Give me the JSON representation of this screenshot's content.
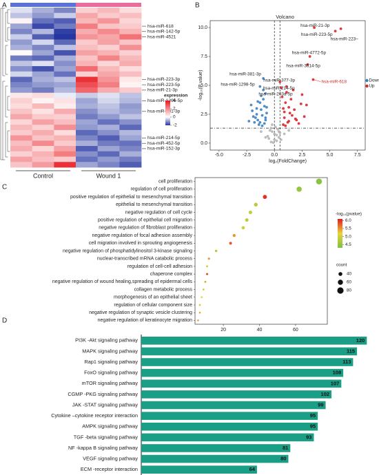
{
  "chart_data": [
    {
      "type": "heatmap",
      "panel": "A",
      "rows": [
        null,
        null,
        null,
        "hsa-miR-618",
        "hsa-miR-142-5p",
        "hsa-miR-4521",
        null,
        null,
        null,
        null,
        null,
        null,
        null,
        "hsa-miR-223-3p",
        "hsa-miR-223-5p",
        "hsa-miR-21-3p",
        null,
        "hsa-miR-1296-5p",
        null,
        "hsa-miR-381-3p",
        null,
        null,
        null,
        null,
        "hsa-miR-214-5p",
        "hsa-miR-452-5p",
        "hsa-miR-152-3p",
        null,
        null,
        null
      ],
      "groups": [
        {
          "name": "Control",
          "color": "#5b73d6"
        },
        {
          "name": "Wound 1",
          "color": "#e86d9d"
        }
      ],
      "values": [
        [
          -0.3,
          -0.8,
          -1.2,
          0.8,
          1.2,
          0.6
        ],
        [
          -0.6,
          -1.0,
          -0.5,
          1.5,
          0.9,
          1.1
        ],
        [
          0.2,
          -1.4,
          -1.6,
          1.2,
          1.8,
          0.7
        ],
        [
          -0.9,
          -1.8,
          -1.3,
          2.2,
          1.0,
          0.9
        ],
        [
          -1.2,
          -0.7,
          -1.9,
          1.4,
          2.0,
          1.3
        ],
        [
          -0.5,
          -1.6,
          -2.0,
          1.8,
          1.5,
          2.4
        ],
        [
          -1.0,
          -0.4,
          -1.5,
          0.9,
          1.6,
          1.0
        ],
        [
          -0.8,
          -1.2,
          -0.6,
          1.1,
          0.8,
          1.9
        ],
        [
          0.1,
          -0.9,
          -1.7,
          1.6,
          1.3,
          0.8
        ],
        [
          -1.3,
          -1.5,
          -0.8,
          1.0,
          2.1,
          1.2
        ],
        [
          -0.6,
          -0.3,
          -1.1,
          1.3,
          0.7,
          1.4
        ],
        [
          -1.1,
          -1.7,
          -0.9,
          2.5,
          1.2,
          0.6
        ],
        [
          -0.4,
          -0.9,
          -1.4,
          0.8,
          1.5,
          1.1
        ],
        [
          -1.5,
          -0.8,
          -0.6,
          3.5,
          1.8,
          0.4
        ],
        [
          -1.2,
          -1.0,
          -0.9,
          3.0,
          2.2,
          0.2
        ],
        [
          -1.0,
          -1.3,
          -0.7,
          2.6,
          1.4,
          0.9
        ],
        [
          0.4,
          0.6,
          -0.2,
          -0.5,
          -0.3,
          -0.6
        ],
        [
          0.8,
          0.2,
          0.5,
          -0.9,
          -0.4,
          -0.7
        ],
        [
          0.6,
          1.2,
          0.3,
          -0.8,
          -0.6,
          -1.0
        ],
        [
          1.0,
          0.5,
          1.4,
          -1.1,
          -0.7,
          -0.9
        ],
        [
          1.5,
          0.9,
          0.8,
          -1.3,
          -1.0,
          -0.6
        ],
        [
          0.7,
          1.6,
          1.1,
          -0.9,
          -1.4,
          -1.1
        ],
        [
          1.2,
          0.8,
          1.9,
          -1.0,
          -0.8,
          -1.5
        ],
        [
          0.9,
          1.4,
          0.6,
          -1.5,
          -1.1,
          -0.7
        ],
        [
          1.8,
          1.0,
          1.3,
          -1.2,
          -1.6,
          -0.9
        ],
        [
          1.1,
          2.0,
          0.9,
          -0.8,
          -1.3,
          -1.4
        ],
        [
          1.4,
          0.7,
          1.6,
          -1.6,
          -0.9,
          -1.2
        ],
        [
          0.8,
          1.3,
          2.2,
          -1.1,
          -1.5,
          -0.8
        ],
        [
          1.6,
          1.1,
          0.9,
          -1.4,
          -1.0,
          -1.3
        ],
        [
          1.0,
          1.7,
          3.5,
          -0.9,
          -1.2,
          -1.6
        ]
      ],
      "clim": [
        -2,
        4
      ],
      "colors": [
        "#2536a0",
        "#ffffff",
        "#e8141c"
      ],
      "legend_title": "expression",
      "legend_ticks": [
        4,
        2,
        0,
        -2
      ]
    },
    {
      "type": "scatter",
      "panel": "B",
      "title": "Volcano",
      "x_label": "log₂(FoldChange)",
      "y_label": "-log₁₀(P value)",
      "xlim": [
        -5.8,
        8.2
      ],
      "ylim": [
        -0.6,
        10.6
      ],
      "xticks": [
        {
          "value": -5,
          "label": "-5.0"
        },
        {
          "value": -2.5,
          "label": "-2.5"
        },
        {
          "value": 0,
          "label": "0.0"
        },
        {
          "value": 2.5,
          "label": "2.5"
        },
        {
          "value": 5,
          "label": "5.0"
        },
        {
          "value": 7.5,
          "label": "7.5"
        }
      ],
      "yticks": [
        {
          "value": 0,
          "label": "0.0"
        },
        {
          "value": 2.5,
          "label": "2.5"
        },
        {
          "value": 5,
          "label": "5.0"
        },
        {
          "value": 7.5,
          "label": "7.5"
        },
        {
          "value": 10,
          "label": "10.0"
        }
      ],
      "vlines": [
        0,
        0.5
      ],
      "hline": 1.3,
      "legend": "right",
      "series": [
        {
          "name": "Down",
          "color": "#3d7fc0",
          "x": [
            -1.2,
            -1.5,
            -0.9,
            -2.0,
            -1.1,
            -1.7,
            -0.8,
            -1.3,
            -2.3,
            -1.0,
            -1.6,
            -0.7,
            -1.4,
            -1.9,
            -1.2,
            -0.9,
            -1.5,
            -2.1,
            -1.1,
            -0.8,
            -1.3,
            -1.8,
            -1.0,
            -0.7,
            -1.6,
            -1.0,
            -1.3,
            -0.8
          ],
          "values": [
            4.1,
            3.6,
            3.2,
            2.8,
            2.4,
            2.2,
            2.0,
            1.8,
            1.9,
            3.8,
            3.0,
            2.6,
            1.6,
            2.3,
            2.9,
            1.7,
            2.0,
            3.3,
            1.5,
            2.2,
            3.5,
            1.8,
            4.6,
            3.1,
            2.5,
            5.6,
            4.9,
            4.3
          ],
          "labels": [
            null,
            null,
            null,
            null,
            null,
            null,
            null,
            null,
            null,
            null,
            null,
            null,
            null,
            null,
            null,
            null,
            null,
            null,
            null,
            null,
            null,
            null,
            null,
            null,
            null,
            "hsa-miR-381-3p",
            "hsa-miR-1298-5p",
            "hsa-miR-203a-5p"
          ]
        },
        {
          "name": "Up",
          "color": "#d9262b",
          "x": [
            0.7,
            1.0,
            1.3,
            0.9,
            1.6,
            2.0,
            1.2,
            0.8,
            1.8,
            2.4,
            1.1,
            1.5,
            0.9,
            2.2,
            1.4,
            1.0,
            2.7,
            1.7,
            0.8,
            1.3,
            2.9,
            1.9,
            1.1,
            3.6,
            3.2,
            3.0,
            5.5,
            6.0,
            3.5,
            2.5,
            0.5,
            0.6
          ],
          "values": [
            4.0,
            3.5,
            3.1,
            2.7,
            2.4,
            2.0,
            1.8,
            1.6,
            2.9,
            3.4,
            4.4,
            3.8,
            2.2,
            1.7,
            2.6,
            1.5,
            2.3,
            4.6,
            3.0,
            1.9,
            3.3,
            2.1,
            4.9,
            10.0,
            7.5,
            6.8,
            9.7,
            9.9,
            5.5,
            4.2,
            5.3,
            4.8
          ],
          "labels": [
            null,
            null,
            null,
            null,
            null,
            null,
            null,
            null,
            null,
            null,
            null,
            null,
            null,
            null,
            null,
            null,
            null,
            null,
            null,
            null,
            null,
            null,
            null,
            "hsa-miR-21-3p",
            "hsa-miR-4772-5p",
            "hsa-miR-3614-5p",
            "hsa-miR-223-5p",
            "hsa-miR-223–",
            "hsa-miR-618",
            null,
            "hsa-miR-377-3p",
            "hsa-miR-214-5p"
          ]
        },
        {
          "color": "#b5b5b5",
          "x": [
            -0.3,
            0.2,
            -0.5,
            0.4,
            0.0,
            -0.2,
            0.3,
            -0.6,
            0.5,
            0.1,
            -0.4,
            0.6,
            -0.1,
            0.2,
            -0.3,
            0.4,
            -0.8,
            0.9,
            -1.2,
            1.3,
            0.0,
            -0.2
          ],
          "values": [
            0.1,
            0.2,
            0.4,
            0.5,
            0.8,
            1.0,
            1.2,
            0.6,
            0.9,
            1.4,
            1.1,
            0.3,
            0.05,
            0.7,
            1.3,
            1.0,
            0.5,
            0.8,
            1.0,
            1.1,
            0.3,
            1.6
          ]
        }
      ]
    },
    {
      "type": "bubble",
      "panel": "C",
      "categories": [
        "cell proliferation",
        "regulation of cell proliferation",
        "positive regulation of epithelial to mesenchymal transition",
        "epithelial to mesenchymal transition",
        "negative regulation of cell cycle",
        "positive regulation of epithelial cell migration",
        "negative regulation of fibroblast proliferation",
        "negative regulation of focal adhesion assembly",
        "cell migration involved in sprouting angiogenesis",
        "negative regulation of phosphatidylinositol 3-kinase signaling",
        "nuclear-transcribed mRNA catabolic process",
        "regulation of cell-cell adhesion",
        "chaperone complex",
        "negative regulation of wound healing,spreading of epidermal cells",
        "collagen metabolic process",
        "morphogenesis of an epithelial sheet",
        "regulation of cellular component size",
        "negative regulation of synaptic vesicle clustering",
        "negative regulation of keratinocyte migration"
      ],
      "values": [
        73,
        62,
        43,
        38,
        35,
        33,
        31,
        26,
        24,
        16,
        12,
        11,
        11,
        10,
        9,
        8,
        7,
        7,
        6
      ],
      "color_values": [
        4.4,
        4.5,
        6.0,
        4.8,
        4.9,
        4.8,
        5.0,
        5.5,
        5.8,
        4.8,
        5.5,
        5.0,
        5.9,
        5.4,
        5.0,
        5.2,
        5.3,
        5.4,
        5.5
      ],
      "xlim": [
        4.3,
        77.6
      ],
      "xticks": [
        20,
        40,
        60
      ],
      "color_lim": [
        4.3,
        6.1
      ],
      "colors": [
        "#7cc242",
        "#e9d23a",
        "#e41a1c"
      ],
      "color_title": "-log₁₀(pvalue)",
      "color_ticks": [
        {
          "value": 6,
          "label": "6.0"
        },
        {
          "value": 5.5,
          "label": "5.5"
        },
        {
          "value": 5,
          "label": "5.0"
        },
        {
          "value": 4.5,
          "label": "4.5"
        }
      ],
      "size_title": "count",
      "size_legend": [
        40,
        60,
        80
      ]
    },
    {
      "type": "barh",
      "panel": "D",
      "categories": [
        "PI3K -Akt signaling pathway",
        "MAPK signaling pathway",
        "Rap1 signaling pathway",
        "FoxO signaling pathway",
        "mTOR signaling pathway",
        "CGMP -PKG signaling pathway",
        "JAK -STAT signaling pathway",
        "Cytokine –cytokine receptor interaction",
        "AMPK signaling pathway",
        "TGF -beta signaling pathway",
        "NF -kappa B signaling pathway",
        "VEGF signaling pathway",
        "ECM -receptor interaction"
      ],
      "values": [
        120,
        115,
        113,
        108,
        107,
        102,
        99,
        95,
        95,
        93,
        81,
        80,
        64
      ],
      "color": "#1b9e86",
      "xlim": [
        5,
        122
      ]
    }
  ]
}
